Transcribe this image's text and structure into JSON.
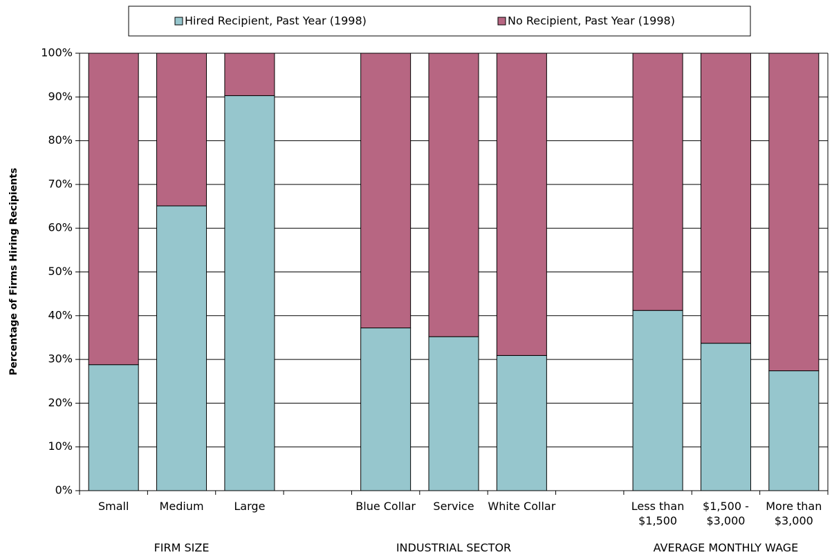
{
  "chart_data": {
    "type": "stacked_bar",
    "y_label": "Percentage of Firms Hiring Recipients",
    "categories": [
      "Small",
      "Medium",
      "Large",
      null,
      "Blue Collar",
      "Service",
      "White Collar",
      null,
      "Less than $1,500",
      "$1,500 - $3,000",
      "More than $3,000"
    ],
    "groups": [
      "FIRM SIZE",
      "INDUSTRIAL SECTOR",
      "AVERAGE MONTHLY WAGE"
    ],
    "series": [
      {
        "name": "Hired Recipient, Past Year (1998)",
        "color": "#96c6cd",
        "values": [
          28.8,
          65.1,
          90.3,
          null,
          37.2,
          35.2,
          30.9,
          null,
          41.2,
          33.7,
          27.4
        ]
      },
      {
        "name": "No Recipient, Past Year (1998)",
        "color": "#b76682",
        "values": [
          71.2,
          34.9,
          9.7,
          null,
          62.8,
          64.8,
          69.1,
          null,
          58.8,
          66.3,
          72.6
        ]
      }
    ],
    "ylim": [
      0,
      100
    ],
    "yticks": [
      {
        "value": 0,
        "label": "0%"
      },
      {
        "value": 10,
        "label": "10%"
      },
      {
        "value": 20,
        "label": "20%"
      },
      {
        "value": 30,
        "label": "30%"
      },
      {
        "value": 40,
        "label": "40%"
      },
      {
        "value": 50,
        "label": "50%"
      },
      {
        "value": 60,
        "label": "60%"
      },
      {
        "value": 70,
        "label": "70%"
      },
      {
        "value": 80,
        "label": "80%"
      },
      {
        "value": 90,
        "label": "90%"
      },
      {
        "value": 100,
        "label": "100%"
      }
    ],
    "grid": true
  }
}
